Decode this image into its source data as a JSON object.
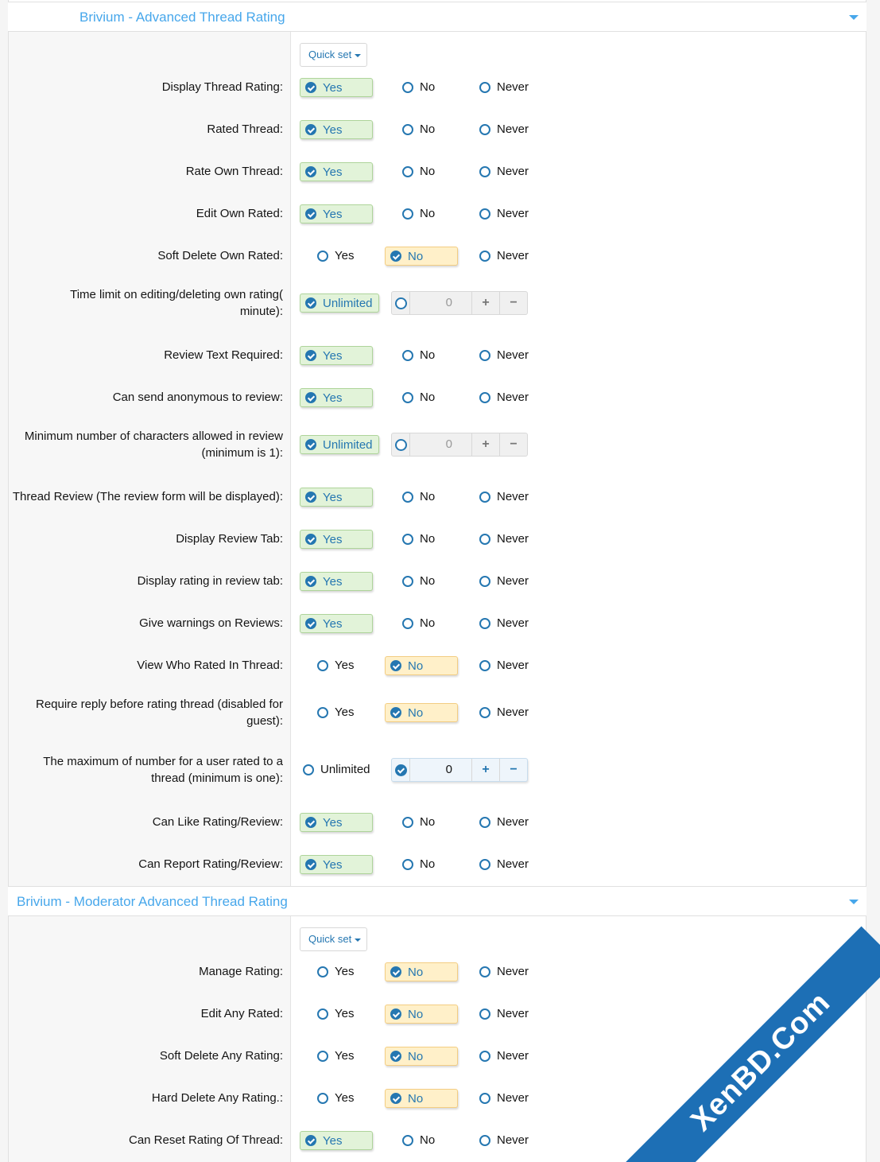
{
  "sections": [
    {
      "title": "Brivium - Advanced Thread Rating",
      "quick_set": "Quick set",
      "rows": [
        {
          "label": [
            "Display Thread Rating:"
          ],
          "type": "yn",
          "selected": "Yes"
        },
        {
          "label": [
            "Rated Thread:"
          ],
          "type": "yn",
          "selected": "Yes"
        },
        {
          "label": [
            "Rate Own Thread:"
          ],
          "type": "yn",
          "selected": "Yes"
        },
        {
          "label": [
            "Edit Own Rated:"
          ],
          "type": "yn",
          "selected": "Yes"
        },
        {
          "label": [
            "Soft Delete Own Rated:"
          ],
          "type": "yn",
          "selected": "No"
        },
        {
          "label": [
            "Time limit on editing/deleting own rating(",
            "minute):"
          ],
          "type": "num",
          "selected": "Unlimited",
          "value": "0"
        },
        {
          "label": [
            "Review Text Required:"
          ],
          "type": "yn",
          "selected": "Yes"
        },
        {
          "label": [
            "Can send anonymous to review:"
          ],
          "type": "yn",
          "selected": "Yes"
        },
        {
          "label": [
            "Minimum number of characters allowed in review",
            "(minimum is 1):"
          ],
          "type": "num",
          "selected": "Unlimited",
          "value": "0"
        },
        {
          "label": [
            "Thread Review (The review form will be displayed):"
          ],
          "type": "yn",
          "selected": "Yes"
        },
        {
          "label": [
            "Display Review Tab:"
          ],
          "type": "yn",
          "selected": "Yes"
        },
        {
          "label": [
            "Display rating in review tab:"
          ],
          "type": "yn",
          "selected": "Yes"
        },
        {
          "label": [
            "Give warnings on Reviews:"
          ],
          "type": "yn",
          "selected": "Yes"
        },
        {
          "label": [
            "View Who Rated In Thread:"
          ],
          "type": "yn",
          "selected": "No"
        },
        {
          "label": [
            "Require reply before rating thread (disabled for",
            "guest):"
          ],
          "type": "yn",
          "selected": "No"
        },
        {
          "label": [
            "The maximum of number for a user rated to a",
            "thread (minimum is one):"
          ],
          "type": "num",
          "selected": "Number",
          "value": "0"
        },
        {
          "label": [
            "Can Like Rating/Review:"
          ],
          "type": "yn",
          "selected": "Yes"
        },
        {
          "label": [
            "Can Report Rating/Review:"
          ],
          "type": "yn",
          "selected": "Yes"
        }
      ]
    },
    {
      "title": "Brivium - Moderator Advanced Thread Rating",
      "quick_set": "Quick set",
      "rows": [
        {
          "label": [
            "Manage Rating:"
          ],
          "type": "yn",
          "selected": "No"
        },
        {
          "label": [
            "Edit Any Rated:"
          ],
          "type": "yn",
          "selected": "No"
        },
        {
          "label": [
            "Soft Delete Any Rating:"
          ],
          "type": "yn",
          "selected": "No"
        },
        {
          "label": [
            "Hard Delete Any Rating.:"
          ],
          "type": "yn",
          "selected": "No"
        },
        {
          "label": [
            "Can Reset Rating Of Thread:"
          ],
          "type": "yn",
          "selected": "Yes"
        }
      ]
    }
  ],
  "options": {
    "yes": "Yes",
    "no": "No",
    "never": "Never",
    "unlimited": "Unlimited",
    "plus": "+",
    "minus": "−"
  },
  "watermark": "XenBD.Com",
  "colors": {
    "accent": "#47a7eb",
    "link": "#2577b1",
    "yes_bg": "#e2f3d9",
    "no_bg": "#fff0c9"
  }
}
